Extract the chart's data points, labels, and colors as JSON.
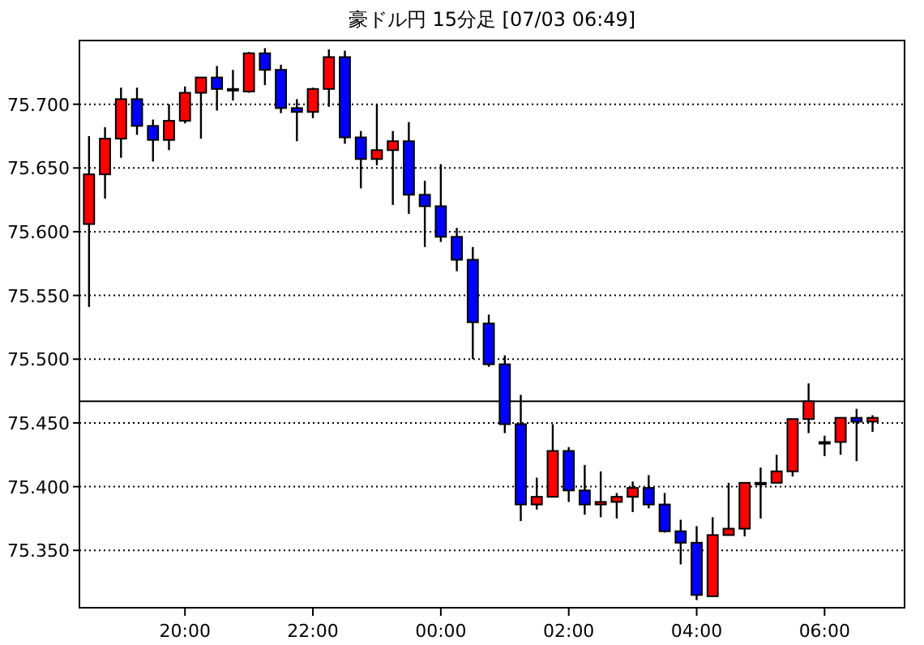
{
  "chart_data": {
    "type": "candlestick",
    "title": "豪ドル円 15分足 [07/03 06:49]",
    "x": [
      "--07-02T18:30",
      "--07-02T18:45",
      "--07-02T19:00",
      "--07-02T19:15",
      "--07-02T19:30",
      "--07-02T19:45",
      "--07-02T20:00",
      "--07-02T20:15",
      "--07-02T20:30",
      "--07-02T20:45",
      "--07-02T21:00",
      "--07-02T21:15",
      "--07-02T21:30",
      "--07-02T21:45",
      "--07-02T22:00",
      "--07-02T22:15",
      "--07-02T22:30",
      "--07-02T22:45",
      "--07-02T23:00",
      "--07-02T23:15",
      "--07-02T23:30",
      "--07-02T23:45",
      "--07-03T00:00",
      "--07-03T00:15",
      "--07-03T00:30",
      "--07-03T00:45",
      "--07-03T01:00",
      "--07-03T01:15",
      "--07-03T01:30",
      "--07-03T01:45",
      "--07-03T02:00",
      "--07-03T02:15",
      "--07-03T02:30",
      "--07-03T02:45",
      "--07-03T03:00",
      "--07-03T03:15",
      "--07-03T03:30",
      "--07-03T03:45",
      "--07-03T04:00",
      "--07-03T04:15",
      "--07-03T04:30",
      "--07-03T04:45",
      "--07-03T05:00",
      "--07-03T05:15",
      "--07-03T05:30",
      "--07-03T05:45",
      "--07-03T06:00",
      "--07-03T06:15",
      "--07-03T06:30",
      "--07-03T06:45"
    ],
    "ohlc": [
      [
        75.606,
        75.675,
        75.541,
        75.645
      ],
      [
        75.645,
        75.682,
        75.626,
        75.673
      ],
      [
        75.673,
        75.713,
        75.658,
        75.704
      ],
      [
        75.704,
        75.713,
        75.676,
        75.683
      ],
      [
        75.683,
        75.688,
        75.655,
        75.672
      ],
      [
        75.672,
        75.7,
        75.664,
        75.687
      ],
      [
        75.687,
        75.714,
        75.685,
        75.709
      ],
      [
        75.709,
        75.721,
        75.673,
        75.721
      ],
      [
        75.721,
        75.73,
        75.695,
        75.712
      ],
      [
        75.712,
        75.727,
        75.703,
        75.712
      ],
      [
        75.71,
        75.741,
        75.709,
        75.74
      ],
      [
        75.74,
        75.744,
        75.715,
        75.727
      ],
      [
        75.727,
        75.731,
        75.693,
        75.697
      ],
      [
        75.697,
        75.704,
        75.671,
        75.694
      ],
      [
        75.694,
        75.713,
        75.689,
        75.712
      ],
      [
        75.712,
        75.743,
        75.698,
        75.737
      ],
      [
        75.737,
        75.742,
        75.669,
        75.674
      ],
      [
        75.674,
        75.679,
        75.634,
        75.657
      ],
      [
        75.657,
        75.7,
        75.652,
        75.664
      ],
      [
        75.664,
        75.679,
        75.621,
        75.671
      ],
      [
        75.671,
        75.686,
        75.614,
        75.629
      ],
      [
        75.629,
        75.64,
        75.588,
        75.62
      ],
      [
        75.62,
        75.653,
        75.592,
        75.596
      ],
      [
        75.596,
        75.603,
        75.569,
        75.578
      ],
      [
        75.578,
        75.588,
        75.5,
        75.529
      ],
      [
        75.528,
        75.535,
        75.494,
        75.496
      ],
      [
        75.496,
        75.503,
        75.442,
        75.449
      ],
      [
        75.449,
        75.472,
        75.373,
        75.386
      ],
      [
        75.386,
        75.407,
        75.382,
        75.392
      ],
      [
        75.392,
        75.449,
        75.392,
        75.428
      ],
      [
        75.428,
        75.431,
        75.388,
        75.397
      ],
      [
        75.397,
        75.417,
        75.378,
        75.386
      ],
      [
        75.386,
        75.412,
        75.376,
        75.388
      ],
      [
        75.388,
        75.395,
        75.375,
        75.392
      ],
      [
        75.392,
        75.404,
        75.38,
        75.399
      ],
      [
        75.399,
        75.409,
        75.383,
        75.386
      ],
      [
        75.386,
        75.395,
        75.364,
        75.365
      ],
      [
        75.365,
        75.374,
        75.339,
        75.356
      ],
      [
        75.356,
        75.369,
        75.311,
        75.315
      ],
      [
        75.314,
        75.376,
        75.314,
        75.362
      ],
      [
        75.362,
        75.403,
        75.362,
        75.367
      ],
      [
        75.367,
        75.403,
        75.361,
        75.403
      ],
      [
        75.403,
        75.415,
        75.375,
        75.403
      ],
      [
        75.403,
        75.425,
        75.403,
        75.412
      ],
      [
        75.412,
        75.453,
        75.408,
        75.453
      ],
      [
        75.453,
        75.481,
        75.442,
        75.467
      ],
      [
        75.435,
        75.44,
        75.424,
        75.435
      ],
      [
        75.435,
        75.454,
        75.425,
        75.454
      ],
      [
        75.454,
        75.461,
        75.42,
        75.451
      ],
      [
        75.451,
        75.456,
        75.443,
        75.454
      ]
    ],
    "colors": [
      "#ff0000",
      "#ff0000",
      "#ff0000",
      "#0000ff",
      "#0000ff",
      "#ff0000",
      "#ff0000",
      "#ff0000",
      "#0000ff",
      "#000000",
      "#ff0000",
      "#0000ff",
      "#0000ff",
      "#0000ff",
      "#ff0000",
      "#ff0000",
      "#0000ff",
      "#0000ff",
      "#ff0000",
      "#ff0000",
      "#0000ff",
      "#0000ff",
      "#0000ff",
      "#0000ff",
      "#0000ff",
      "#0000ff",
      "#0000ff",
      "#0000ff",
      "#ff0000",
      "#ff0000",
      "#0000ff",
      "#0000ff",
      "#ff0000",
      "#ff0000",
      "#ff0000",
      "#0000ff",
      "#0000ff",
      "#0000ff",
      "#0000ff",
      "#ff0000",
      "#ff0000",
      "#ff0000",
      "#000000",
      "#ff0000",
      "#ff0000",
      "#ff0000",
      "#000000",
      "#ff0000",
      "#0000ff",
      "#ff0000"
    ],
    "xlim": [
      "--07-02T18:21",
      "--07-03T07:15"
    ],
    "xticks": [
      {
        "value": "--07-02T20:00",
        "label": "20:00"
      },
      {
        "value": "--07-02T22:00",
        "label": "22:00"
      },
      {
        "value": "--07-03T00:00",
        "label": "00:00"
      },
      {
        "value": "--07-03T02:00",
        "label": "02:00"
      },
      {
        "value": "--07-03T04:00",
        "label": "04:00"
      },
      {
        "value": "--07-03T06:00",
        "label": "06:00"
      }
    ],
    "ylim": [
      75.305,
      75.75
    ],
    "yticks": [
      {
        "value": 75.35,
        "label": "75.350"
      },
      {
        "value": 75.4,
        "label": "75.400"
      },
      {
        "value": 75.45,
        "label": "75.450"
      },
      {
        "value": 75.5,
        "label": "75.500"
      },
      {
        "value": 75.55,
        "label": "75.550"
      },
      {
        "value": 75.6,
        "label": "75.600"
      },
      {
        "value": 75.65,
        "label": "75.650"
      },
      {
        "value": 75.7,
        "label": "75.700"
      }
    ],
    "grid": "y",
    "ref_lines": [
      {
        "axis": "y",
        "value": 75.467,
        "color": "#000000"
      }
    ]
  }
}
